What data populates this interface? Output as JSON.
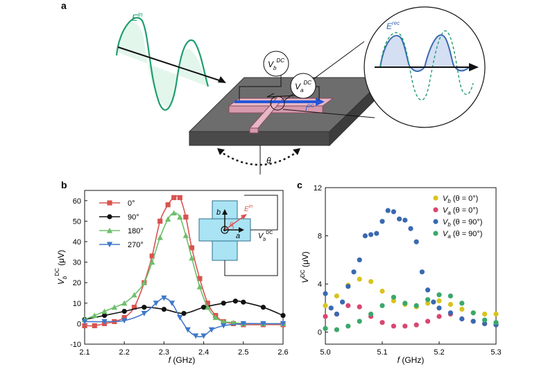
{
  "panel_a": {
    "label": "a",
    "e_in": {
      "base": "E",
      "sup": "in"
    },
    "e_rec": {
      "base": "E",
      "sup": "rec"
    },
    "vb_dc": {
      "base": "V",
      "sub": "b",
      "sup": "DC"
    },
    "va_dc": {
      "base": "V",
      "sub": "a",
      "sup": "DC"
    },
    "i_dc": {
      "base": "I",
      "sup": "DC"
    },
    "theta": "θ"
  },
  "panel_b": {
    "label": "b",
    "inset": {
      "e_in": "E",
      "e_in_sup": "in",
      "b_hat": "b",
      "a_hat": "a",
      "theta": "θ",
      "vdc": "V",
      "vdc_sub": "b",
      "vdc_sup": "DC"
    }
  },
  "panel_c": {
    "label": "c"
  },
  "chart_data": [
    {
      "type": "line",
      "panel": "b",
      "xlabel": "f (GHz)",
      "ylabel": "V_b^DC (μV)",
      "xlim": [
        2.1,
        2.6
      ],
      "ylim": [
        -10,
        65
      ],
      "xticks": [
        "2.1",
        "2.2",
        "2.3",
        "2.4",
        "2.5",
        "2.6"
      ],
      "yticks": [
        "-10",
        "0",
        "10",
        "20",
        "30",
        "40",
        "50",
        "60"
      ],
      "legend_position": "top-left",
      "series": [
        {
          "name": "0°",
          "color": "#d9534f",
          "marker": "square",
          "x": [
            2.1,
            2.125,
            2.15,
            2.175,
            2.2,
            2.225,
            2.25,
            2.27,
            2.29,
            2.31,
            2.325,
            2.34,
            2.355,
            2.37,
            2.39,
            2.41,
            2.43,
            2.45,
            2.475,
            2.5,
            2.55,
            2.6
          ],
          "y": [
            -1,
            -1,
            0,
            1,
            3,
            8,
            20,
            33,
            50,
            58,
            61.5,
            61.5,
            52,
            37,
            22,
            10,
            4,
            1,
            0,
            -0.5,
            -0.5,
            -0.5
          ]
        },
        {
          "name": "90°",
          "color": "#111111",
          "marker": "circle",
          "x": [
            2.1,
            2.15,
            2.2,
            2.25,
            2.3,
            2.35,
            2.4,
            2.45,
            2.48,
            2.5,
            2.55,
            2.6
          ],
          "y": [
            2,
            4,
            6,
            8,
            7,
            5,
            8,
            10,
            11,
            10.5,
            8,
            4
          ]
        },
        {
          "name": "180°",
          "color": "#6dbf6a",
          "marker": "triangle-up",
          "x": [
            2.1,
            2.125,
            2.15,
            2.175,
            2.2,
            2.225,
            2.25,
            2.27,
            2.29,
            2.31,
            2.325,
            2.34,
            2.355,
            2.37,
            2.39,
            2.41,
            2.43,
            2.45,
            2.475,
            2.5,
            2.55,
            2.6
          ],
          "y": [
            2,
            4,
            6,
            8,
            10,
            14,
            20,
            30,
            42,
            51,
            54,
            52,
            43,
            32,
            18,
            8,
            3,
            1,
            0.5,
            0,
            0,
            0
          ]
        },
        {
          "name": "270°",
          "color": "#3f78c9",
          "marker": "triangle-down",
          "x": [
            2.1,
            2.15,
            2.2,
            2.25,
            2.28,
            2.3,
            2.32,
            2.34,
            2.36,
            2.38,
            2.4,
            2.42,
            2.45,
            2.5,
            2.55,
            2.6
          ],
          "y": [
            1,
            1,
            1.5,
            5,
            10,
            12.5,
            10,
            3,
            -3,
            -6,
            -6,
            -3,
            -1,
            0,
            0,
            0
          ]
        }
      ]
    },
    {
      "type": "scatter",
      "panel": "c",
      "xlabel": "f (GHz)",
      "ylabel": "V^DC (μV)",
      "xlim": [
        5.0,
        5.3
      ],
      "ylim": [
        -1,
        12
      ],
      "xticks": [
        "5.0",
        "5.1",
        "5.2",
        "5.3"
      ],
      "yticks": [
        "0",
        "4",
        "8",
        "12"
      ],
      "legend_position": "top-right",
      "series": [
        {
          "name": "V_b (θ = 0°)",
          "color": "#d8c41e",
          "x": [
            5.0,
            5.02,
            5.04,
            5.06,
            5.08,
            5.1,
            5.12,
            5.14,
            5.16,
            5.18,
            5.2,
            5.22,
            5.24,
            5.26,
            5.28,
            5.3
          ],
          "y": [
            2.2,
            3.0,
            3.9,
            4.4,
            4.2,
            3.4,
            2.6,
            2.3,
            2.1,
            2.4,
            2.6,
            2.3,
            1.9,
            1.6,
            1.5,
            1.5
          ]
        },
        {
          "name": "V_a (θ = 0°)",
          "color": "#d9466f",
          "x": [
            5.0,
            5.02,
            5.04,
            5.06,
            5.08,
            5.1,
            5.12,
            5.14,
            5.16,
            5.18,
            5.2,
            5.22,
            5.24,
            5.26,
            5.28,
            5.3
          ],
          "y": [
            1.3,
            1.5,
            2.2,
            2.1,
            1.3,
            0.8,
            0.5,
            0.5,
            0.6,
            0.9,
            1.3,
            1.5,
            1.1,
            0.9,
            0.7,
            0.6
          ]
        },
        {
          "name": "V_b (θ = 90°)",
          "color": "#3a69b0",
          "x": [
            5.0,
            5.01,
            5.02,
            5.03,
            5.04,
            5.05,
            5.06,
            5.07,
            5.08,
            5.09,
            5.1,
            5.11,
            5.12,
            5.13,
            5.14,
            5.15,
            5.16,
            5.17,
            5.18,
            5.19,
            5.2,
            5.22,
            5.24,
            5.26,
            5.28,
            5.3
          ],
          "y": [
            3.2,
            2.0,
            1.5,
            2.5,
            3.8,
            5.0,
            6.0,
            8.0,
            8.1,
            8.2,
            9.2,
            10.1,
            10.0,
            9.4,
            9.3,
            8.6,
            7.5,
            5.0,
            3.5,
            2.5,
            2.0,
            1.6,
            1.1,
            0.9,
            0.7,
            0.6
          ]
        },
        {
          "name": "V_a (θ = 90°)",
          "color": "#3aa86b",
          "x": [
            5.0,
            5.02,
            5.04,
            5.06,
            5.08,
            5.1,
            5.12,
            5.14,
            5.16,
            5.18,
            5.2,
            5.22,
            5.24,
            5.26,
            5.28,
            5.3
          ],
          "y": [
            0.3,
            0.2,
            0.5,
            0.9,
            1.5,
            2.2,
            2.9,
            2.4,
            2.2,
            2.7,
            3.1,
            3.0,
            2.4,
            1.6,
            1.0,
            0.8
          ]
        }
      ]
    }
  ]
}
